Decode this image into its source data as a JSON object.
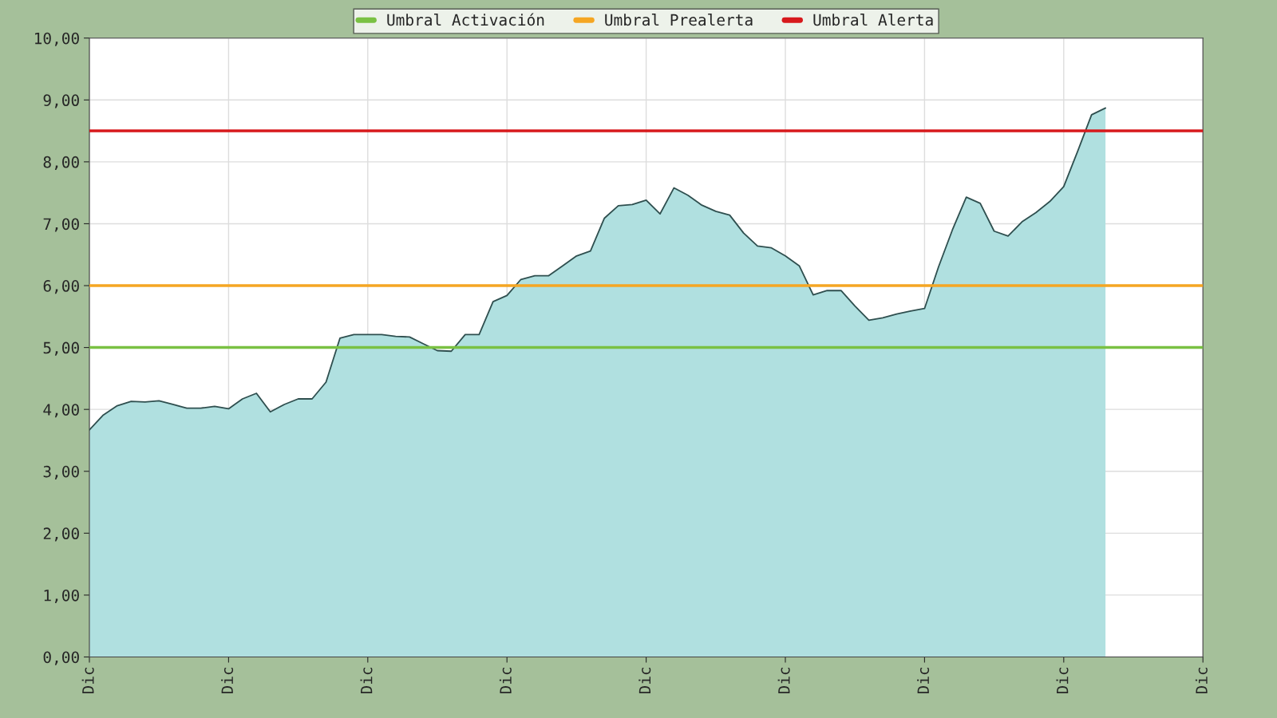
{
  "chart_data": {
    "type": "area",
    "categories": [
      "Dic",
      null,
      null,
      null,
      null,
      null,
      null,
      null,
      null,
      null,
      "Dic",
      null,
      null,
      null,
      null,
      null,
      null,
      null,
      null,
      null,
      "Dic",
      null,
      null,
      null,
      null,
      null,
      null,
      null,
      null,
      null,
      "Dic",
      null,
      null,
      null,
      null,
      null,
      null,
      null,
      null,
      null,
      "Dic",
      null,
      null,
      null,
      null,
      null,
      null,
      null,
      null,
      null,
      "Dic",
      null,
      null,
      null,
      null,
      null,
      null,
      null,
      null,
      null,
      "Dic",
      null,
      null,
      null,
      null,
      null,
      null,
      null,
      null,
      null,
      "Dic",
      null,
      null,
      null,
      null,
      null,
      null,
      null,
      null,
      null,
      "Dic"
    ],
    "series": [
      {
        "color": "#b0e0e0",
        "values": [
          3.67,
          3.91,
          4.06,
          4.13,
          4.12,
          4.14,
          4.08,
          4.02,
          4.02,
          4.05,
          4.01,
          4.17,
          4.26,
          3.96,
          4.08,
          4.17,
          4.17,
          4.44,
          5.15,
          5.21,
          5.21,
          5.21,
          5.18,
          5.17,
          5.06,
          4.95,
          4.94,
          5.21,
          5.21,
          5.74,
          5.84,
          6.1,
          6.16,
          6.16,
          6.32,
          6.48,
          6.56,
          7.09,
          7.29,
          7.31,
          7.38,
          7.16,
          7.58,
          7.46,
          7.3,
          7.2,
          7.14,
          6.85,
          6.64,
          6.61,
          6.48,
          6.32,
          5.85,
          5.92,
          5.92,
          5.67,
          5.44,
          5.48,
          5.54,
          5.59,
          5.63,
          6.3,
          6.9,
          7.43,
          7.33,
          6.88,
          6.8,
          7.03,
          7.18,
          7.36,
          7.6,
          8.17,
          8.76,
          8.87,
          null,
          null,
          null,
          null,
          null,
          null,
          null
        ]
      }
    ],
    "ylim": [
      0,
      10
    ],
    "yticks": [
      {
        "value": 0,
        "label": "0,00"
      },
      {
        "value": 1,
        "label": "1,00"
      },
      {
        "value": 2,
        "label": "2,00"
      },
      {
        "value": 3,
        "label": "3,00"
      },
      {
        "value": 4,
        "label": "4,00"
      },
      {
        "value": 5,
        "label": "5,00"
      },
      {
        "value": 6,
        "label": "6,00"
      },
      {
        "value": 7,
        "label": "7,00"
      },
      {
        "value": 8,
        "label": "8,00"
      },
      {
        "value": 9,
        "label": "9,00"
      },
      {
        "value": 10,
        "label": "10,00"
      }
    ],
    "ref_lines": [
      {
        "axis": "y",
        "value": 5,
        "label": "Umbral Activación",
        "color": "#7ac143"
      },
      {
        "axis": "y",
        "value": 6,
        "label": "Umbral Prealerta",
        "color": "#f5a623"
      },
      {
        "axis": "y",
        "value": 8.5,
        "label": "Umbral Alerta",
        "color": "#d7191c"
      }
    ],
    "grid": true,
    "legend": "top"
  }
}
